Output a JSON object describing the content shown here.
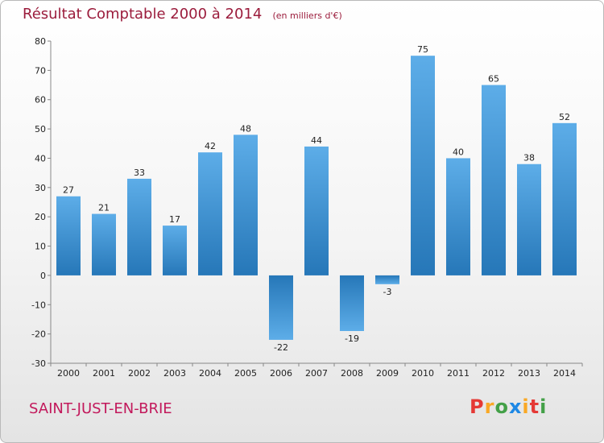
{
  "header": {
    "title": "Résultat Comptable 2000 à 2014",
    "unit": "(en milliers d'€)"
  },
  "footer": {
    "commune": "SAINT-JUST-EN-BRIE",
    "logo_letters": [
      "P",
      "r",
      "o",
      "x",
      "i",
      "t",
      "i"
    ],
    "logo_colors": [
      "#e53935",
      "#f9a825",
      "#43a047",
      "#1e88e5",
      "#f9a825",
      "#e53935",
      "#43a047"
    ]
  },
  "chart_data": {
    "type": "bar",
    "title": "Résultat Comptable 2000 à 2014",
    "subtitle": "(en milliers d'€)",
    "xlabel": "",
    "ylabel": "",
    "categories": [
      "2000",
      "2001",
      "2002",
      "2003",
      "2004",
      "2005",
      "2006",
      "2007",
      "2008",
      "2009",
      "2010",
      "2011",
      "2012",
      "2013",
      "2014"
    ],
    "values": [
      27,
      21,
      33,
      17,
      42,
      48,
      -22,
      44,
      -19,
      -3,
      75,
      40,
      65,
      38,
      52
    ],
    "ylim": [
      -30,
      80
    ],
    "yticks": [
      -30,
      -20,
      -10,
      0,
      10,
      20,
      30,
      40,
      50,
      60,
      70,
      80
    ],
    "grid": false,
    "colors": {
      "bar_light": "#5dade8",
      "bar_dark": "#2677b8",
      "axis": "#888888"
    }
  }
}
